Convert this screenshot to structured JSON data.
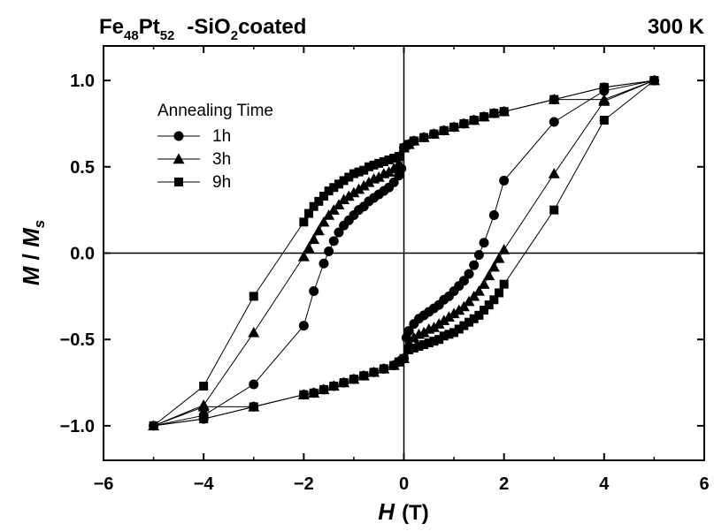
{
  "chart_data": {
    "type": "scatter",
    "title_left": {
      "base": "Fe",
      "sub1": "48",
      "mid": "Pt",
      "sub2": "52",
      "tail_prefix": "-SiO",
      "sub3": "2",
      "tail": "coated"
    },
    "title_right": "300 K",
    "xlabel": {
      "var": "H",
      "unit": "(T)"
    },
    "ylabel": {
      "var": "M",
      "sep": " / ",
      "var2": "M",
      "sub": "s"
    },
    "xlim": [
      -6,
      6
    ],
    "ylim": [
      -1.2,
      1.2
    ],
    "xticks": [
      -6,
      -4,
      -2,
      0,
      2,
      4,
      6
    ],
    "xtick_labels": [
      "−6",
      "−4",
      "−2",
      "0",
      "2",
      "4",
      "6"
    ],
    "yticks": [
      1.0,
      0.5,
      0.0,
      -0.5,
      -1.0
    ],
    "ytick_labels": [
      "1.0",
      "0.5",
      "0.0",
      "−0.5",
      "−1.0"
    ],
    "legend_title": "Annealing Time",
    "legend_position": "upper-left",
    "series": [
      {
        "name": "1h",
        "marker": "circle",
        "x": [
          5,
          4,
          3,
          2,
          1.8,
          1.6,
          1.4,
          1.2,
          1.0,
          0.8,
          0.6,
          0.4,
          0.2,
          0.1,
          0.05,
          0,
          -0.05,
          -0.1,
          -0.2,
          -0.3,
          -0.4,
          -0.5,
          -0.6,
          -0.7,
          -0.8,
          -0.9,
          -1.0,
          -1.1,
          -1.2,
          -1.3,
          -1.4,
          -1.5,
          -1.6,
          -1.8,
          -2,
          -3,
          -4,
          -5,
          -4,
          -3,
          -2,
          -1.8,
          -1.6,
          -1.4,
          -1.2,
          -1.0,
          -0.8,
          -0.6,
          -0.4,
          -0.2,
          -0.1,
          -0.05,
          0,
          0.05,
          0.1,
          0.2,
          0.3,
          0.4,
          0.5,
          0.6,
          0.7,
          0.8,
          0.9,
          1.0,
          1.1,
          1.2,
          1.3,
          1.4,
          1.5,
          1.6,
          1.8,
          2,
          3,
          4,
          5
        ],
        "y": [
          1.0,
          0.96,
          0.89,
          0.82,
          0.81,
          0.79,
          0.77,
          0.75,
          0.73,
          0.71,
          0.69,
          0.67,
          0.65,
          0.63,
          0.62,
          0.61,
          0.49,
          0.45,
          0.41,
          0.38,
          0.36,
          0.34,
          0.32,
          0.3,
          0.27,
          0.25,
          0.22,
          0.19,
          0.16,
          0.12,
          0.07,
          0.01,
          -0.06,
          -0.22,
          -0.42,
          -0.76,
          -0.94,
          -1.0,
          -0.96,
          -0.89,
          -0.82,
          -0.81,
          -0.79,
          -0.77,
          -0.75,
          -0.73,
          -0.71,
          -0.69,
          -0.67,
          -0.65,
          -0.63,
          -0.62,
          -0.61,
          -0.49,
          -0.45,
          -0.41,
          -0.38,
          -0.36,
          -0.34,
          -0.32,
          -0.3,
          -0.27,
          -0.25,
          -0.22,
          -0.19,
          -0.16,
          -0.12,
          -0.07,
          -0.01,
          0.06,
          0.22,
          0.42,
          0.76,
          0.94,
          1.0
        ]
      },
      {
        "name": "3h",
        "marker": "triangle",
        "x": [
          5,
          4,
          3,
          2,
          1.8,
          1.6,
          1.4,
          1.2,
          1.0,
          0.8,
          0.6,
          0.4,
          0.2,
          0.1,
          0,
          -0.1,
          -0.2,
          -0.3,
          -0.4,
          -0.5,
          -0.6,
          -0.7,
          -0.8,
          -0.9,
          -1.0,
          -1.1,
          -1.2,
          -1.3,
          -1.4,
          -1.5,
          -1.6,
          -1.7,
          -1.8,
          -1.9,
          -2,
          -3,
          -4,
          -5,
          -4,
          -3,
          -2,
          -1.8,
          -1.6,
          -1.4,
          -1.2,
          -1.0,
          -0.8,
          -0.6,
          -0.4,
          -0.2,
          -0.1,
          0,
          0.1,
          0.2,
          0.3,
          0.4,
          0.5,
          0.6,
          0.7,
          0.8,
          0.9,
          1.0,
          1.1,
          1.2,
          1.3,
          1.4,
          1.5,
          1.6,
          1.7,
          1.8,
          1.9,
          2,
          3,
          4,
          5
        ],
        "y": [
          1.0,
          0.89,
          0.89,
          0.82,
          0.81,
          0.79,
          0.77,
          0.75,
          0.73,
          0.71,
          0.69,
          0.67,
          0.65,
          0.63,
          0.61,
          0.52,
          0.49,
          0.47,
          0.46,
          0.44,
          0.43,
          0.41,
          0.39,
          0.37,
          0.35,
          0.33,
          0.31,
          0.28,
          0.25,
          0.22,
          0.18,
          0.13,
          0.08,
          0.03,
          -0.02,
          -0.46,
          -0.88,
          -1.0,
          -0.89,
          -0.89,
          -0.82,
          -0.81,
          -0.79,
          -0.77,
          -0.75,
          -0.73,
          -0.71,
          -0.69,
          -0.67,
          -0.65,
          -0.63,
          -0.61,
          -0.52,
          -0.49,
          -0.47,
          -0.46,
          -0.44,
          -0.43,
          -0.41,
          -0.39,
          -0.37,
          -0.35,
          -0.33,
          -0.31,
          -0.28,
          -0.25,
          -0.22,
          -0.18,
          -0.13,
          -0.08,
          -0.03,
          0.02,
          0.46,
          0.88,
          1.0
        ]
      },
      {
        "name": "9h",
        "marker": "square",
        "x": [
          5,
          4,
          3,
          2,
          1.8,
          1.6,
          1.4,
          1.2,
          1.0,
          0.8,
          0.6,
          0.4,
          0.2,
          0.1,
          0,
          -0.1,
          -0.2,
          -0.3,
          -0.4,
          -0.5,
          -0.6,
          -0.7,
          -0.8,
          -0.9,
          -1.0,
          -1.1,
          -1.2,
          -1.3,
          -1.4,
          -1.5,
          -1.6,
          -1.7,
          -1.8,
          -1.9,
          -2,
          -3,
          -4,
          -5,
          -4,
          -3,
          -2,
          -1.8,
          -1.6,
          -1.4,
          -1.2,
          -1.0,
          -0.8,
          -0.6,
          -0.4,
          -0.2,
          -0.1,
          0,
          0.1,
          0.2,
          0.3,
          0.4,
          0.5,
          0.6,
          0.7,
          0.8,
          0.9,
          1.0,
          1.1,
          1.2,
          1.3,
          1.4,
          1.5,
          1.6,
          1.7,
          1.8,
          1.9,
          2,
          3,
          4,
          5
        ],
        "y": [
          1.0,
          0.96,
          0.89,
          0.82,
          0.81,
          0.79,
          0.77,
          0.75,
          0.73,
          0.71,
          0.69,
          0.67,
          0.65,
          0.63,
          0.61,
          0.56,
          0.55,
          0.54,
          0.53,
          0.52,
          0.51,
          0.5,
          0.48,
          0.47,
          0.46,
          0.44,
          0.42,
          0.4,
          0.38,
          0.36,
          0.33,
          0.3,
          0.27,
          0.23,
          0.18,
          -0.25,
          -0.77,
          -1.0,
          -0.96,
          -0.89,
          -0.82,
          -0.81,
          -0.79,
          -0.77,
          -0.75,
          -0.73,
          -0.71,
          -0.69,
          -0.67,
          -0.65,
          -0.63,
          -0.61,
          -0.56,
          -0.55,
          -0.54,
          -0.53,
          -0.52,
          -0.51,
          -0.5,
          -0.48,
          -0.47,
          -0.46,
          -0.44,
          -0.42,
          -0.4,
          -0.38,
          -0.36,
          -0.33,
          -0.3,
          -0.27,
          -0.23,
          -0.18,
          0.25,
          0.77,
          1.0
        ]
      }
    ]
  }
}
